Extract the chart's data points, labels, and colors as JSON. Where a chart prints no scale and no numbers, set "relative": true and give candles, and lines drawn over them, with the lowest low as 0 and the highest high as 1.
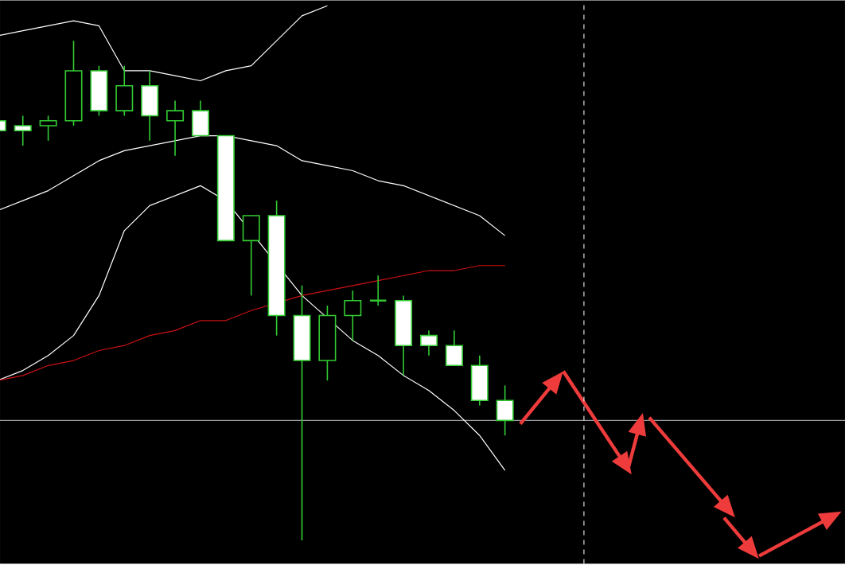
{
  "chart_data": {
    "type": "candlestick",
    "relative": true,
    "color": "#33cc33",
    "categories": [
      null,
      null,
      null,
      null,
      null,
      null,
      null,
      null,
      null,
      null,
      null,
      null,
      null,
      null,
      null,
      null,
      null,
      null,
      null,
      null,
      null,
      null,
      null,
      null,
      null,
      null,
      null,
      null,
      null,
      null,
      null,
      null,
      null,
      null
    ],
    "ohlc": [
      [
        0.84,
        0.84,
        0.82,
        0.82
      ],
      [
        0.83,
        0.85,
        0.79,
        0.82
      ],
      [
        0.83,
        0.85,
        0.8,
        0.84
      ],
      [
        0.84,
        1.0,
        0.83,
        0.94
      ],
      [
        0.94,
        0.95,
        0.85,
        0.86
      ],
      [
        0.86,
        0.95,
        0.85,
        0.91
      ],
      [
        0.91,
        0.94,
        0.8,
        0.85
      ],
      [
        0.84,
        0.88,
        0.77,
        0.86
      ],
      [
        0.86,
        0.88,
        0.81,
        0.81
      ],
      [
        0.81,
        0.81,
        0.6,
        0.6
      ],
      [
        0.6,
        0.65,
        0.49,
        0.65
      ],
      [
        0.65,
        0.68,
        0.41,
        0.45
      ],
      [
        0.45,
        0.51,
        0.0,
        0.36
      ],
      [
        0.36,
        0.47,
        0.32,
        0.45
      ],
      [
        0.45,
        0.5,
        0.4,
        0.48
      ],
      [
        0.48,
        0.53,
        0.47,
        0.48
      ],
      [
        0.48,
        0.49,
        0.33,
        0.39
      ],
      [
        0.41,
        0.42,
        0.37,
        0.39
      ],
      [
        0.39,
        0.42,
        0.35,
        0.35
      ],
      [
        0.35,
        0.37,
        0.27,
        0.28
      ],
      [
        0.28,
        0.31,
        0.21,
        0.24
      ],
      null,
      null,
      null,
      null,
      null,
      null,
      null,
      null,
      null,
      null,
      null,
      null,
      null
    ],
    "series": [
      {
        "type": "line",
        "color": "#ffffff",
        "values": [
          1.01,
          1.02,
          1.03,
          1.04,
          1.03,
          0.94,
          0.94,
          0.93,
          0.92,
          0.94,
          0.95,
          1.0,
          1.05,
          1.07,
          null,
          null,
          null,
          null,
          null,
          null,
          null,
          null,
          null,
          null,
          null,
          null,
          null,
          null,
          null,
          null,
          null,
          null,
          null,
          null
        ]
      },
      {
        "type": "line",
        "color": "#ffffff",
        "values": [
          0.66,
          0.68,
          0.7,
          0.73,
          0.76,
          0.78,
          0.79,
          0.8,
          0.81,
          0.81,
          0.8,
          0.79,
          0.76,
          0.75,
          0.74,
          0.72,
          0.71,
          0.69,
          0.67,
          0.65,
          0.61,
          null,
          null,
          null,
          null,
          null,
          null,
          null,
          null,
          null,
          null,
          null,
          null,
          null
        ]
      },
      {
        "type": "line",
        "color": "#ffffff",
        "values": [
          0.32,
          0.34,
          0.37,
          0.41,
          0.49,
          0.62,
          0.67,
          0.69,
          0.71,
          0.68,
          null,
          null,
          0.49,
          null,
          0.4,
          0.37,
          0.33,
          0.3,
          0.26,
          0.21,
          0.14,
          null,
          null,
          null,
          null,
          null,
          null,
          null,
          null,
          null,
          null,
          null,
          null,
          null
        ]
      },
      {
        "type": "line",
        "color": "#cc1111",
        "values": [
          0.32,
          0.33,
          0.35,
          0.36,
          0.38,
          0.39,
          0.41,
          0.42,
          0.44,
          0.44,
          0.46,
          null,
          0.49,
          0.5,
          0.51,
          0.52,
          0.53,
          0.54,
          0.54,
          0.55,
          0.55,
          null,
          null,
          null,
          null,
          null,
          null,
          null,
          null,
          null,
          null,
          null,
          null,
          null
        ]
      }
    ],
    "ref_lines": [
      {
        "axis": "y",
        "value": 0.24,
        "color": "#a0a0a4",
        "line_style": "solid"
      }
    ]
  }
}
